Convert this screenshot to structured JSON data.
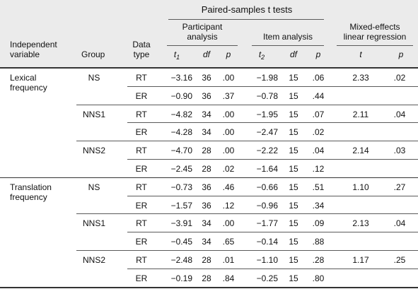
{
  "header": {
    "paired_title": "Paired-samples t tests",
    "participant_analysis": [
      "Participant",
      "analysis"
    ],
    "item_analysis": "Item analysis",
    "mixed_effects": [
      "Mixed-effects",
      "linear regression"
    ],
    "independent_variable": [
      "Independent",
      "variable"
    ],
    "group": "Group",
    "data_type": [
      "Data",
      "type"
    ],
    "t1": "t",
    "t1_sub": "1",
    "df1": "df",
    "p1": "p",
    "t2": "t",
    "t2_sub": "2",
    "df2": "df",
    "p2": "p",
    "t_me": "t",
    "p_me": "p"
  },
  "sections": [
    {
      "variable": [
        "Lexical",
        "frequency"
      ],
      "groups": [
        {
          "name": "NS",
          "me_t": "2.33",
          "me_p": ".02",
          "rows": [
            {
              "type": "RT",
              "t1": "−3.16",
              "df1": "36",
              "p1": ".00",
              "t2": "−1.98",
              "df2": "15",
              "p2": ".06"
            },
            {
              "type": "ER",
              "t1": "−0.90",
              "df1": "36",
              "p1": ".37",
              "t2": "−0.78",
              "df2": "15",
              "p2": ".44"
            }
          ]
        },
        {
          "name": "NNS1",
          "me_t": "2.11",
          "me_p": ".04",
          "rows": [
            {
              "type": "RT",
              "t1": "−4.82",
              "df1": "34",
              "p1": ".00",
              "t2": "−1.95",
              "df2": "15",
              "p2": ".07"
            },
            {
              "type": "ER",
              "t1": "−4.28",
              "df1": "34",
              "p1": ".00",
              "t2": "−2.47",
              "df2": "15",
              "p2": ".02"
            }
          ]
        },
        {
          "name": "NNS2",
          "me_t": "2.14",
          "me_p": ".03",
          "rows": [
            {
              "type": "RT",
              "t1": "−4.70",
              "df1": "28",
              "p1": ".00",
              "t2": "−2.22",
              "df2": "15",
              "p2": ".04"
            },
            {
              "type": "ER",
              "t1": "−2.45",
              "df1": "28",
              "p1": ".02",
              "t2": "−1.64",
              "df2": "15",
              "p2": ".12"
            }
          ]
        }
      ]
    },
    {
      "variable": [
        "Translation",
        "frequency"
      ],
      "groups": [
        {
          "name": "NS",
          "me_t": "1.10",
          "me_p": ".27",
          "rows": [
            {
              "type": "RT",
              "t1": "−0.73",
              "df1": "36",
              "p1": ".46",
              "t2": "−0.66",
              "df2": "15",
              "p2": ".51"
            },
            {
              "type": "ER",
              "t1": "−1.57",
              "df1": "36",
              "p1": ".12",
              "t2": "−0.96",
              "df2": "15",
              "p2": ".34"
            }
          ]
        },
        {
          "name": "NNS1",
          "me_t": "2.13",
          "me_p": ".04",
          "rows": [
            {
              "type": "RT",
              "t1": "−3.91",
              "df1": "34",
              "p1": ".00",
              "t2": "−1.77",
              "df2": "15",
              "p2": ".09"
            },
            {
              "type": "ER",
              "t1": "−0.45",
              "df1": "34",
              "p1": ".65",
              "t2": "−0.14",
              "df2": "15",
              "p2": ".88"
            }
          ]
        },
        {
          "name": "NNS2",
          "me_t": "1.17",
          "me_p": ".25",
          "rows": [
            {
              "type": "RT",
              "t1": "−2.48",
              "df1": "28",
              "p1": ".01",
              "t2": "−1.10",
              "df2": "15",
              "p2": ".28"
            },
            {
              "type": "ER",
              "t1": "−0.19",
              "df1": "28",
              "p1": ".84",
              "t2": "−0.25",
              "df2": "15",
              "p2": ".80"
            }
          ]
        }
      ]
    }
  ]
}
